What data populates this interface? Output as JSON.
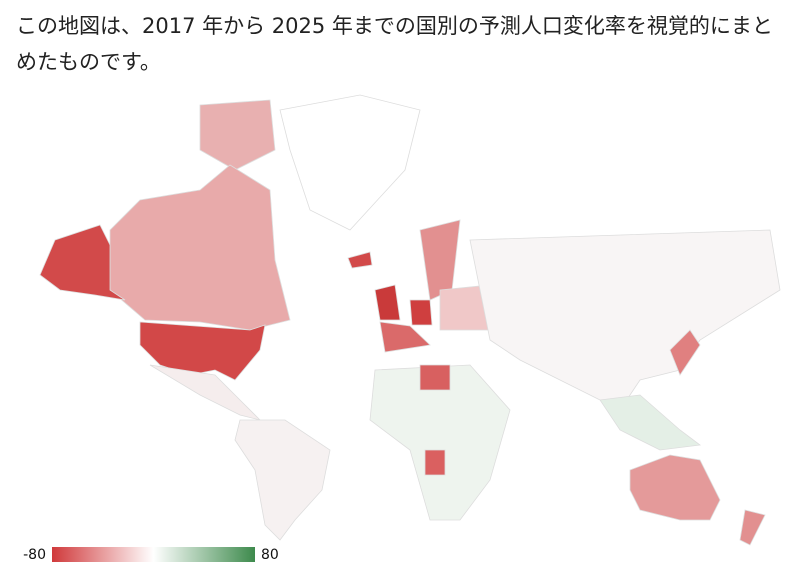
{
  "description": "この地図は、2017 年から 2025 年までの国別の予測人口変化率を視覚的にまとめたものです。",
  "legend": {
    "min": -80,
    "max": 80
  }
}
